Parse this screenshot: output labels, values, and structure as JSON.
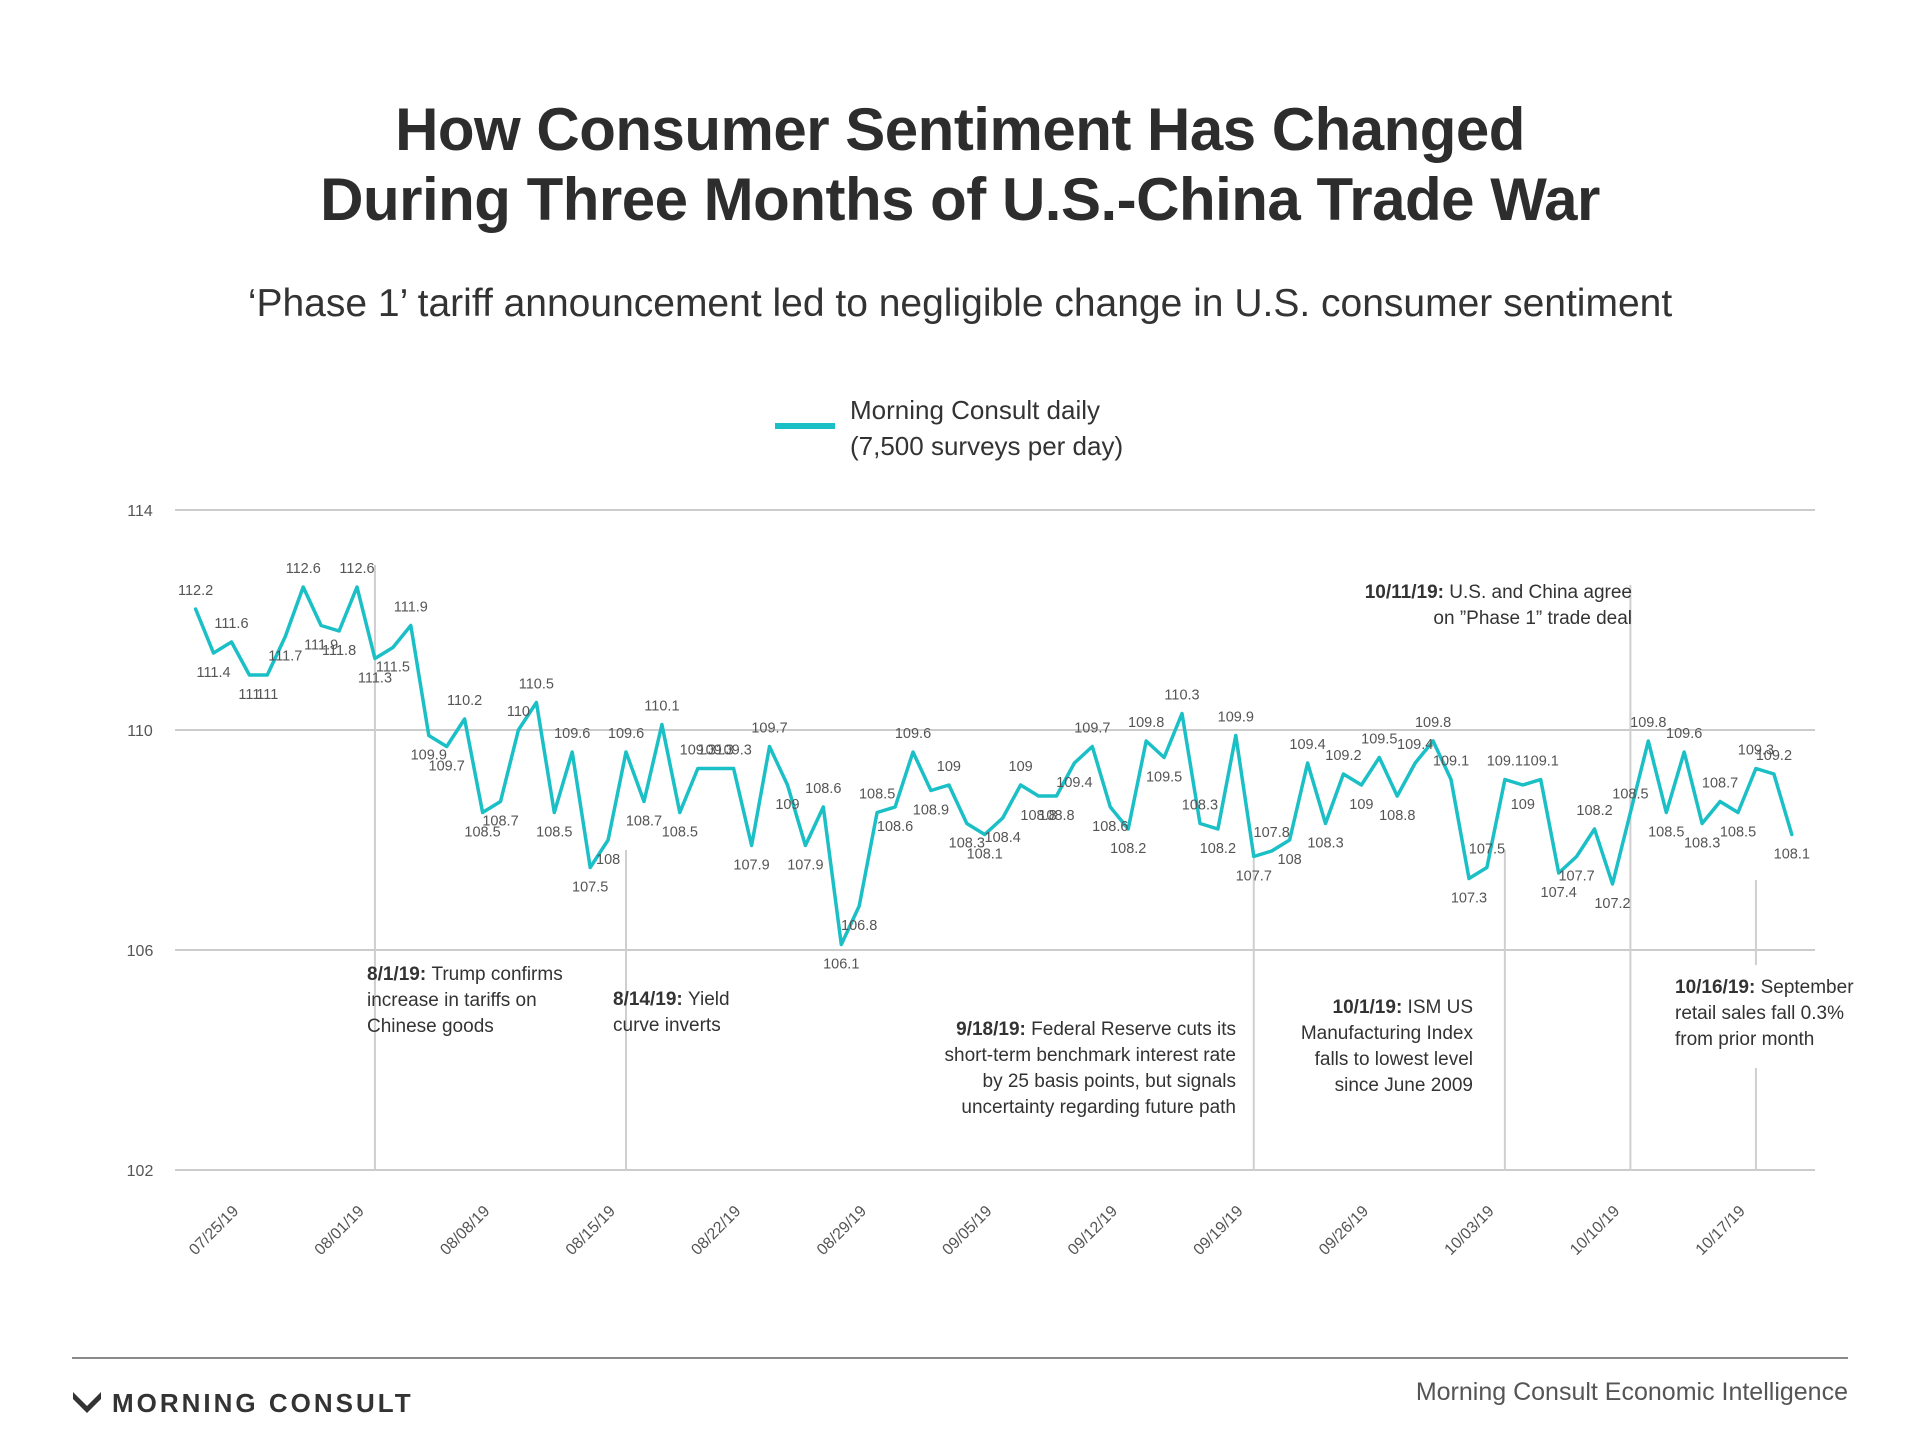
{
  "title_lines": [
    "How Consumer Sentiment Has Changed",
    "During Three Months of U.S.-China Trade War"
  ],
  "subtitle": "‘Phase 1’ tariff announcement led to negligible change in U.S. consumer sentiment",
  "footer": {
    "brand": "MORNING CONSULT",
    "source": "Morning Consult Economic Intelligence"
  },
  "colors": {
    "line": "#1bbfc6",
    "grid": "#cccccc",
    "annotation_line": "#cfcfcf",
    "text": "#333333"
  },
  "chart_data": {
    "type": "line",
    "series": [
      {
        "name": "Morning Consult daily\n(7,500 surveys per day)",
        "values": [
          112.2,
          111.4,
          111.6,
          111,
          111,
          111.7,
          112.6,
          111.9,
          111.8,
          112.6,
          111.3,
          111.5,
          111.9,
          109.9,
          109.7,
          110.2,
          108.5,
          108.7,
          110,
          110.5,
          108.5,
          109.6,
          107.5,
          108,
          109.6,
          108.7,
          110.1,
          108.5,
          109.3,
          109.3,
          109.3,
          107.9,
          109.7,
          109,
          107.9,
          108.6,
          106.1,
          106.8,
          108.5,
          108.6,
          109.6,
          108.9,
          109,
          108.3,
          108.1,
          108.4,
          109,
          108.8,
          108.8,
          109.4,
          109.7,
          108.6,
          108.2,
          109.8,
          109.5,
          110.3,
          108.3,
          108.2,
          109.9,
          107.7,
          107.8,
          108,
          109.4,
          108.3,
          109.2,
          109,
          109.5,
          108.8,
          109.4,
          109.8,
          109.1,
          107.3,
          107.5,
          109.1,
          109,
          109.1,
          107.4,
          107.7,
          108.2,
          107.2,
          108.5,
          109.8,
          108.5,
          109.6,
          108.3,
          108.7,
          108.5,
          109.3,
          109.2,
          108.1
        ]
      }
    ],
    "x_start": "07/22/19",
    "x_end": "10/19/19",
    "x_tick_labels": [
      "07/25/19",
      "08/01/19",
      "08/08/19",
      "08/15/19",
      "08/22/19",
      "08/29/19",
      "09/05/19",
      "09/12/19",
      "09/19/19",
      "09/26/19",
      "10/03/19",
      "10/10/19",
      "10/17/19"
    ],
    "ylim": [
      102,
      114
    ],
    "y_ticks": [
      "102",
      "106",
      "110",
      "114"
    ],
    "grid": "horizontal",
    "legend_position": "top-center",
    "annotations": [
      {
        "date": "08/01/19",
        "title": "8/1/19:",
        "lines": [
          "Trump confirms",
          "increase in tariffs on",
          "Chinese goods"
        ],
        "align": "left"
      },
      {
        "date": "08/15/19",
        "title": "8/14/19:",
        "lines": [
          "Yield",
          "curve inverts"
        ],
        "align": "left"
      },
      {
        "date": "09/19/19",
        "title": "9/18/19:",
        "lines": [
          "Federal Reserve cuts its",
          "short-term benchmark interest rate",
          "by 25 basis points, but signals",
          "uncertainty regarding future path"
        ],
        "align": "right"
      },
      {
        "date": "10/03/19",
        "title": "10/1/19:",
        "lines": [
          "ISM US",
          "Manufacturing Index",
          "falls to lowest level",
          "since June 2009"
        ],
        "align": "right"
      },
      {
        "date": "10/10/19",
        "title": "10/11/19:",
        "lines": [
          "U.S. and China agree",
          "on ”Phase 1” trade deal"
        ],
        "align": "right"
      },
      {
        "date": "10/17/19",
        "title": "10/16/19:",
        "lines": [
          "September",
          "retail sales fall 0.3%",
          "from prior month"
        ],
        "align": "left"
      }
    ]
  }
}
